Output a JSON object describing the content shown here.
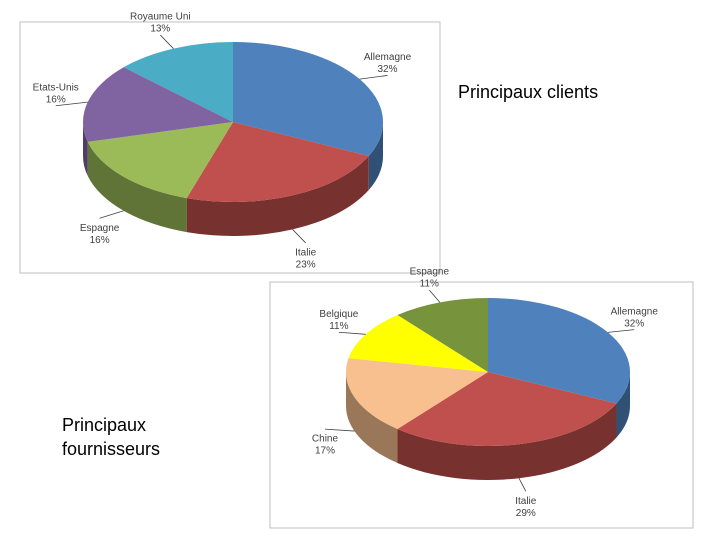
{
  "chart_data": [
    {
      "type": "pie",
      "title": "Principaux clients",
      "categories": [
        "Allemagne",
        "Italie",
        "Espagne",
        "Etats-Unis",
        "Royaume Uni"
      ],
      "values": [
        32,
        23,
        16,
        16,
        13
      ],
      "value_labels": [
        "32%",
        "23%",
        "16%",
        "16%",
        "13%"
      ],
      "colors": [
        "#4f81bd",
        "#c0504d",
        "#9bbb59",
        "#8064a2",
        "#4bacc6"
      ]
    },
    {
      "type": "pie",
      "title": "Principaux fournisseurs",
      "categories": [
        "Allemagne",
        "Italie",
        "Chine",
        "Belgique",
        "Espagne"
      ],
      "values": [
        32,
        29,
        17,
        11,
        11
      ],
      "value_labels": [
        "32%",
        "29%",
        "17%",
        "11%",
        "11%"
      ],
      "colors": [
        "#4f81bd",
        "#c0504d",
        "#f9c08f",
        "#ffff00",
        "#77933c"
      ]
    }
  ]
}
